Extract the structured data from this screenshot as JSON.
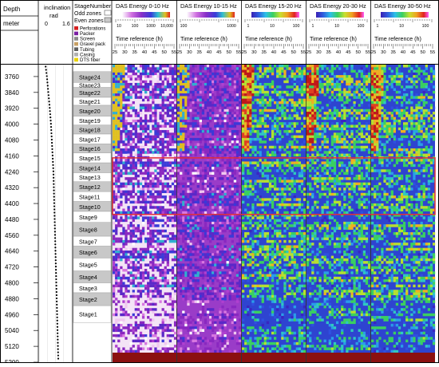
{
  "depth_track": {
    "header": "Depth",
    "unit": "meter",
    "ticks": [
      3760,
      3840,
      3920,
      4000,
      4080,
      4160,
      4240,
      4320,
      4400,
      4480,
      4560,
      4640,
      4720,
      4800,
      4880,
      4960,
      5040,
      5120,
      5200
    ],
    "range": [
      3700,
      5200
    ]
  },
  "inclination_track": {
    "header": "inclination",
    "unit": "rad",
    "scale_min": "0",
    "scale_max": "1.6",
    "points": [
      [
        3710,
        0.32
      ],
      [
        3760,
        0.38
      ],
      [
        3840,
        0.45
      ],
      [
        3920,
        0.52
      ],
      [
        4000,
        0.58
      ],
      [
        4080,
        0.62
      ],
      [
        4160,
        0.66
      ],
      [
        4240,
        0.7
      ],
      [
        4320,
        0.72
      ],
      [
        4400,
        0.74
      ],
      [
        4480,
        0.76
      ],
      [
        4560,
        0.78
      ],
      [
        4640,
        0.8
      ],
      [
        4720,
        0.82
      ],
      [
        4800,
        0.84
      ],
      [
        4880,
        0.86
      ],
      [
        4960,
        0.88
      ],
      [
        5040,
        0.9
      ],
      [
        5120,
        0.92
      ],
      [
        5195,
        0.94
      ]
    ]
  },
  "stage_track": {
    "header": "StageNumber",
    "odd_label": "Odd zones",
    "even_label": "Even zones",
    "stages": [
      {
        "label": "Stage24",
        "top": 3735,
        "bottom": 3790,
        "even": true
      },
      {
        "label": "Stage23",
        "top": 3790,
        "bottom": 3815,
        "even": false
      },
      {
        "label": "Stage22",
        "top": 3815,
        "bottom": 3865,
        "even": true
      },
      {
        "label": "Stage21",
        "top": 3865,
        "bottom": 3905,
        "even": false
      },
      {
        "label": "Stage20",
        "top": 3905,
        "bottom": 3960,
        "even": true
      },
      {
        "label": "Stage19",
        "top": 3960,
        "bottom": 4005,
        "even": false
      },
      {
        "label": "Stage18",
        "top": 4005,
        "bottom": 4050,
        "even": true
      },
      {
        "label": "Stage17",
        "top": 4050,
        "bottom": 4100,
        "even": false
      },
      {
        "label": "Stage16",
        "top": 4100,
        "bottom": 4145,
        "even": true
      },
      {
        "label": "Stage15",
        "top": 4145,
        "bottom": 4195,
        "even": false
      },
      {
        "label": "Stage14",
        "top": 4195,
        "bottom": 4245,
        "even": true
      },
      {
        "label": "Stage13",
        "top": 4245,
        "bottom": 4290,
        "even": false
      },
      {
        "label": "Stage12",
        "top": 4290,
        "bottom": 4340,
        "even": true
      },
      {
        "label": "Stage11",
        "top": 4340,
        "bottom": 4390,
        "even": false
      },
      {
        "label": "Stage10",
        "top": 4390,
        "bottom": 4440,
        "even": true
      },
      {
        "label": "Stage9",
        "top": 4440,
        "bottom": 4495,
        "even": false
      },
      {
        "label": "Stage8",
        "top": 4495,
        "bottom": 4565,
        "even": true
      },
      {
        "label": "Stage7",
        "top": 4565,
        "bottom": 4615,
        "even": false
      },
      {
        "label": "Stage6",
        "top": 4615,
        "bottom": 4675,
        "even": true
      },
      {
        "label": "Stage5",
        "top": 4675,
        "bottom": 4740,
        "even": false
      },
      {
        "label": "Stage4",
        "top": 4740,
        "bottom": 4800,
        "even": true
      },
      {
        "label": "Stage3",
        "top": 4800,
        "bottom": 4850,
        "even": false
      },
      {
        "label": "Stage2",
        "top": 4850,
        "bottom": 4915,
        "even": true
      },
      {
        "label": "Stage1",
        "top": 4915,
        "bottom": 5000,
        "even": false
      }
    ],
    "legend": [
      {
        "label": "Perforations",
        "color": "#d62020"
      },
      {
        "label": "Packer",
        "color": "#7a1fa2"
      },
      {
        "label": "Screen",
        "color": "#8a8a8a"
      },
      {
        "label": "Gravel pack",
        "color": "#c8a064"
      },
      {
        "label": "Tubing",
        "color": "#606060"
      },
      {
        "label": "Casing",
        "color": "#b0b0b0"
      },
      {
        "label": "DTS fiber",
        "color": "#e8d200"
      }
    ]
  },
  "panel_common": {
    "colorbar_ticks": [
      "1",
      "10",
      "100"
    ],
    "time_label": "Time reference (h)",
    "time_ticks": [
      "25",
      "30",
      "35",
      "40",
      "45",
      "50",
      "55"
    ]
  },
  "panels": [
    {
      "title": "DAS Energy 0-10 Hz",
      "colorbar_ticks": [
        "10",
        "100",
        "1000",
        "10,000"
      ]
    },
    {
      "title": "DAS Energy 10-15 Hz",
      "colorbar_ticks": [
        "100",
        "1000"
      ]
    },
    {
      "title": "DAS Energy 15-20 Hz",
      "colorbar_ticks": [
        "1",
        "10",
        "100"
      ]
    },
    {
      "title": "DAS Energy 20-30 Hz",
      "colorbar_ticks": [
        "1",
        "10",
        "100"
      ]
    },
    {
      "title": "DAS Energy 30-50 Hz",
      "colorbar_ticks": [
        "1",
        "10",
        "100"
      ]
    }
  ],
  "highlight_box": {
    "top_depth": 4170,
    "bottom_depth": 4455,
    "color": "#e0303a"
  },
  "colors": {
    "border": "#000000",
    "even_zone": "#c8c8c8",
    "odd_zone": "#ffffff",
    "depth_bar": "#8b1010"
  },
  "chart_data": {
    "type": "heatmap",
    "title": "",
    "ylabel": "Depth (meter)",
    "xlabel": "Time reference (h)",
    "ylim": [
      3700,
      5200
    ],
    "xlim": [
      25,
      55
    ],
    "y_reversed": true,
    "series": [
      {
        "name": "DAS Energy 0-10 Hz"
      },
      {
        "name": "DAS Energy 10-15 Hz"
      },
      {
        "name": "DAS Energy 15-20 Hz"
      },
      {
        "name": "DAS Energy 20-30 Hz"
      },
      {
        "name": "DAS Energy 30-50 Hz"
      }
    ]
  }
}
